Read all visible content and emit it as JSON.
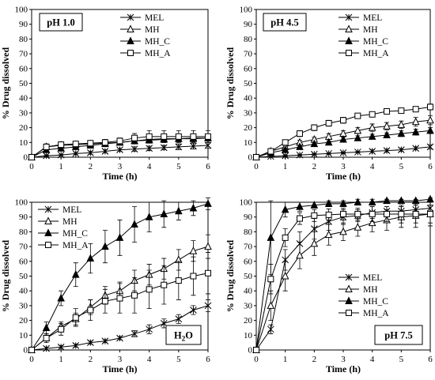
{
  "chart_data": [
    {
      "type": "line",
      "panel_label": "pH 1.0",
      "xlabel": "Time (h)",
      "ylabel": "% Drug dissolved",
      "xlim": [
        0,
        6
      ],
      "ylim": [
        0,
        100
      ],
      "xticks": [
        "0",
        "1",
        "2",
        "3",
        "4",
        "5",
        "6"
      ],
      "yticks": [
        "0",
        "10",
        "20",
        "30",
        "40",
        "50",
        "60",
        "70",
        "80",
        "90",
        "100"
      ],
      "legend_position": "top-right",
      "x": [
        0,
        0.5,
        1,
        1.5,
        2,
        2.5,
        3,
        3.5,
        4,
        4.5,
        5,
        5.5,
        6
      ],
      "series": [
        {
          "name": "MEL",
          "marker": "x",
          "values": [
            0,
            1,
            1.5,
            2.5,
            3,
            4,
            5,
            5.5,
            6,
            6.5,
            7,
            7.5,
            8
          ],
          "errors": [
            0,
            0.5,
            0.5,
            0.8,
            1,
            1,
            1,
            1.5,
            1.5,
            1.5,
            2,
            2,
            2
          ]
        },
        {
          "name": "MH",
          "marker": "open-triangle",
          "values": [
            0,
            7,
            8,
            8.5,
            9,
            9.5,
            10,
            11,
            11.5,
            12,
            12.5,
            12.5,
            13
          ],
          "errors": [
            0,
            1,
            1,
            1,
            1,
            1.5,
            1.5,
            2,
            2,
            2,
            2,
            2,
            2
          ]
        },
        {
          "name": "MH_C",
          "marker": "filled-triangle",
          "values": [
            0,
            5,
            6,
            7,
            8,
            9,
            10,
            11,
            12,
            12.5,
            12.5,
            13,
            13
          ],
          "errors": [
            0,
            1,
            1,
            1,
            1,
            1,
            1.5,
            1.5,
            2,
            2,
            2,
            2,
            2
          ]
        },
        {
          "name": "MH_A",
          "marker": "open-square",
          "values": [
            0,
            7,
            8.5,
            9,
            9.5,
            10,
            11,
            13,
            14,
            14,
            14,
            14,
            14
          ],
          "errors": [
            0,
            2,
            2,
            1.5,
            1.5,
            2,
            2,
            3,
            4,
            4,
            4,
            4,
            4
          ]
        }
      ]
    },
    {
      "type": "line",
      "panel_label": "pH 4.5",
      "xlabel": "Time (h)",
      "ylabel": "% Drug dissolved",
      "xlim": [
        0,
        6
      ],
      "ylim": [
        0,
        100
      ],
      "xticks": [
        "0",
        "1",
        "2",
        "3",
        "4",
        "5",
        "6"
      ],
      "yticks": [
        "0",
        "10",
        "20",
        "30",
        "40",
        "50",
        "60",
        "70",
        "80",
        "90",
        "100"
      ],
      "legend_position": "top-right",
      "x": [
        0,
        0.5,
        1,
        1.5,
        2,
        2.5,
        3,
        3.5,
        4,
        4.5,
        5,
        5.5,
        6
      ],
      "series": [
        {
          "name": "MEL",
          "marker": "x",
          "values": [
            0,
            0.5,
            1,
            1.5,
            2,
            2.5,
            3,
            3.5,
            4,
            4.5,
            5,
            6,
            7
          ],
          "errors": [
            0,
            0.5,
            0.5,
            0.5,
            0.5,
            0.5,
            0.5,
            0.5,
            1,
            1,
            1,
            1,
            1.5
          ]
        },
        {
          "name": "MH",
          "marker": "open-triangle",
          "values": [
            0,
            4,
            7,
            10,
            12,
            14,
            16,
            18,
            20,
            21,
            22,
            24,
            25
          ],
          "errors": [
            0,
            1,
            1,
            1.5,
            1.5,
            2,
            2,
            2,
            2.5,
            2.5,
            2.5,
            3,
            3
          ]
        },
        {
          "name": "MH_C",
          "marker": "filled-triangle",
          "values": [
            0,
            3,
            5,
            7,
            9,
            10,
            12,
            13,
            14,
            15,
            16,
            17,
            18
          ],
          "errors": [
            0,
            0.5,
            1,
            1,
            1,
            1,
            1.5,
            1.5,
            1.5,
            1.5,
            2,
            2,
            2
          ]
        },
        {
          "name": "MH_A",
          "marker": "open-square",
          "values": [
            0,
            4,
            10,
            16,
            20,
            23,
            25,
            28,
            29,
            31,
            31.5,
            32.5,
            34
          ],
          "errors": [
            0,
            1,
            1.5,
            2,
            2,
            2,
            2,
            1.5,
            1.5,
            1.5,
            1.5,
            1.5,
            2
          ]
        }
      ]
    },
    {
      "type": "line",
      "panel_label": "H2O",
      "xlabel": "Time (h)",
      "ylabel": "% Drug dissolved",
      "xlim": [
        0,
        6
      ],
      "ylim": [
        0,
        100
      ],
      "xticks": [
        "0",
        "1",
        "2",
        "3",
        "4",
        "5",
        "6"
      ],
      "yticks": [
        "0",
        "10",
        "20",
        "30",
        "40",
        "50",
        "60",
        "70",
        "80",
        "90",
        "100"
      ],
      "legend_position": "top-left",
      "x": [
        0,
        0.5,
        1,
        1.5,
        2,
        2.5,
        3,
        3.5,
        4,
        4.5,
        5,
        5.5,
        6
      ],
      "series": [
        {
          "name": "MEL",
          "marker": "x",
          "values": [
            0,
            1,
            2,
            3,
            5,
            6,
            8,
            11,
            14,
            18,
            21,
            27,
            30
          ],
          "errors": [
            0,
            1,
            1,
            1,
            1,
            1,
            1,
            2,
            3,
            3,
            3,
            3,
            4
          ]
        },
        {
          "name": "MH",
          "marker": "open-triangle",
          "values": [
            0,
            8,
            16,
            21,
            29,
            37,
            40,
            47,
            51,
            55,
            61,
            67,
            70
          ],
          "errors": [
            0,
            2,
            3,
            4,
            5,
            6,
            6,
            7,
            7,
            7,
            7,
            7,
            8
          ]
        },
        {
          "name": "MH_C",
          "marker": "filled-triangle",
          "values": [
            0,
            15,
            35,
            51,
            62,
            70,
            76,
            85,
            90,
            92,
            94,
            96,
            99
          ],
          "errors": [
            0,
            4,
            5,
            8,
            10,
            11,
            12,
            12,
            10,
            9,
            6,
            5,
            4
          ]
        },
        {
          "name": "MH_A",
          "marker": "open-square",
          "values": [
            0,
            8,
            14,
            22,
            27,
            33,
            35,
            37,
            41,
            44,
            47,
            50,
            52
          ],
          "errors": [
            0,
            3,
            4,
            6,
            7,
            8,
            10,
            12,
            13,
            13,
            13,
            13,
            14
          ]
        }
      ]
    },
    {
      "type": "line",
      "panel_label": "pH 7.5",
      "xlabel": "Time (h)",
      "ylabel": "% Drug dissolved",
      "xlim": [
        0,
        6
      ],
      "ylim": [
        0,
        100
      ],
      "xticks": [
        "0",
        "1",
        "2",
        "3",
        "4",
        "5",
        "6"
      ],
      "yticks": [
        "0",
        "10",
        "20",
        "30",
        "40",
        "50",
        "60",
        "70",
        "80",
        "90",
        "100"
      ],
      "legend_position": "bottom-right",
      "x": [
        0,
        0.5,
        1,
        1.5,
        2,
        2.5,
        3,
        3.5,
        4,
        4.5,
        5,
        5.5,
        6
      ],
      "series": [
        {
          "name": "MEL",
          "marker": "x",
          "values": [
            0,
            14,
            61,
            72,
            82,
            87,
            90,
            91,
            93,
            94,
            94,
            95,
            96
          ],
          "errors": [
            0,
            3,
            7,
            8,
            7,
            6,
            5,
            4,
            4,
            3,
            3,
            3,
            2
          ]
        },
        {
          "name": "MH",
          "marker": "open-triangle",
          "values": [
            0,
            30,
            50,
            64,
            72,
            78,
            80,
            83,
            86,
            88,
            90,
            91,
            92
          ],
          "errors": [
            0,
            10,
            10,
            9,
            8,
            7,
            6,
            6,
            6,
            7,
            7,
            8,
            8
          ]
        },
        {
          "name": "MH_C",
          "marker": "filled-triangle",
          "values": [
            0,
            76,
            95,
            97,
            98,
            99,
            99,
            100,
            100,
            101,
            101,
            101,
            102
          ],
          "errors": [
            0,
            25,
            5,
            3,
            2,
            2,
            2,
            2,
            2,
            1,
            1,
            1,
            1
          ]
        },
        {
          "name": "MH_A",
          "marker": "open-square",
          "values": [
            0,
            48,
            76,
            89,
            91,
            91.5,
            92,
            92,
            92,
            92,
            92,
            92,
            92
          ],
          "errors": [
            0,
            10,
            6,
            4,
            4,
            4,
            4,
            4,
            5,
            5,
            6,
            6,
            6
          ]
        }
      ]
    }
  ]
}
